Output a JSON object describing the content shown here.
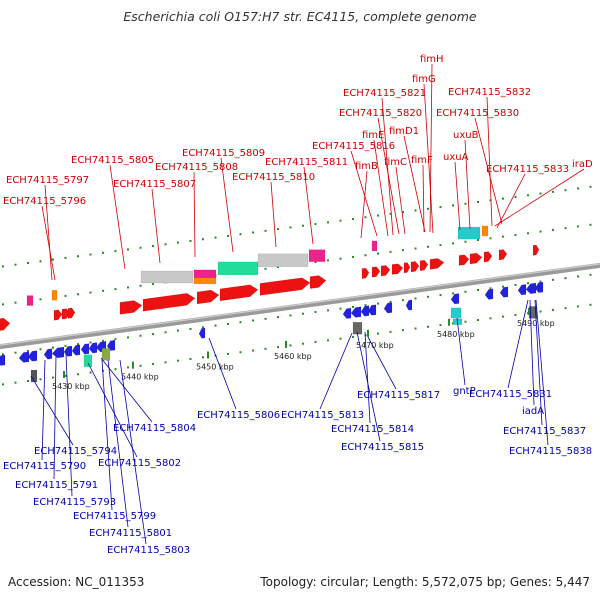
{
  "title": "Escherichia coli O157:H7 str. EC4115, complete genome",
  "footer": {
    "accession": "Accession: NC_011353",
    "summary": "Topology: circular; Length: 5,572,075 bp; Genes: 5,447"
  },
  "colors": {
    "upper_label": "#cc0000",
    "lower_label": "#0000aa",
    "upper_gene": "#ee1111",
    "lower_gene": "#2222dd",
    "backbone": "#808080"
  },
  "scale_ticks": [
    "5430 kbp",
    "5440 kbp",
    "5450 kbp",
    "5460 kbp",
    "5470 kbp",
    "5480 kbp",
    "5490 kbp"
  ],
  "upper_labels": [
    "fimH",
    "fimG",
    "ECH74115_5821",
    "ECH74115_5832",
    "ECH74115_5820",
    "ECH74115_5830",
    "fimE",
    "fimD1",
    "uxuB",
    "ECH74115_5809",
    "ECH74115_5816",
    "ECH74115_5805",
    "ECH74115_5808",
    "ECH74115_5811",
    "fimB",
    "fimC",
    "fimF",
    "uxuA",
    "iraD",
    "ECH74115_5810",
    "ECH74115_5833",
    "ECH74115_5797",
    "ECH74115_5807",
    "ECH74115_5796"
  ],
  "lower_labels": [
    "ECH74115_5817",
    "gntP",
    "ECH74115_5831",
    "ECH74115_5806",
    "ECH74115_5813",
    "ECH74115_5804",
    "iadA",
    "ECH74115_5814",
    "ECH74115_5837",
    "ECH74115_5794",
    "ECH74115_5815",
    "ECH74115_5838",
    "ECH74115_5790",
    "ECH74115_5802",
    "ECH74115_5791",
    "ECH74115_5793",
    "ECH74115_5799",
    "ECH74115_5801",
    "ECH74115_5803"
  ]
}
